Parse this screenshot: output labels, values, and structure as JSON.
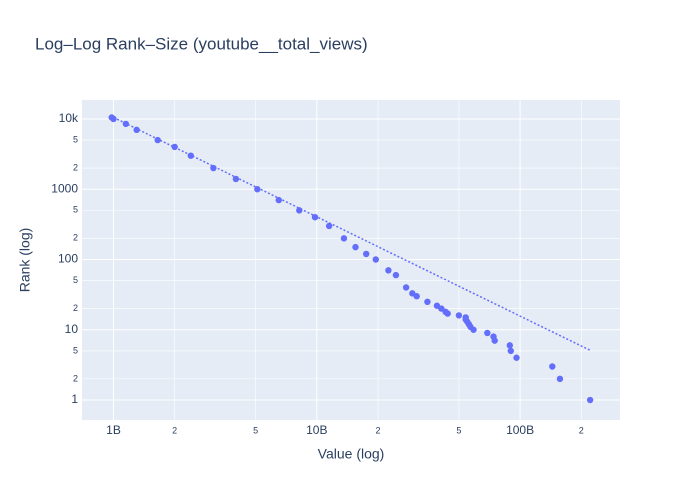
{
  "chart_data": {
    "type": "scatter",
    "title": "Log–Log Rank–Size (youtube__total_views)",
    "xlabel": "Value (log)",
    "ylabel": "Rank (log)",
    "xscale": "log",
    "yscale": "log",
    "grid": true,
    "xlim": [
      700000000,
      310000000000
    ],
    "ylim": [
      0.52,
      18600
    ],
    "xticks": [
      {
        "value": 1000000000,
        "label": "1B"
      },
      {
        "value": 2000000000,
        "label": "2"
      },
      {
        "value": 5000000000,
        "label": "5"
      },
      {
        "value": 10000000000,
        "label": "10B"
      },
      {
        "value": 20000000000,
        "label": "2"
      },
      {
        "value": 50000000000,
        "label": "5"
      },
      {
        "value": 100000000000,
        "label": "100B"
      },
      {
        "value": 200000000000,
        "label": "2"
      }
    ],
    "yticks": [
      1,
      2,
      5,
      10,
      {
        "value": 20,
        "label": "2"
      },
      {
        "value": 50,
        "label": "5"
      },
      100,
      {
        "value": 200,
        "label": "2"
      },
      {
        "value": 500,
        "label": "5"
      },
      1000,
      {
        "value": 2000,
        "label": "2"
      },
      {
        "value": 5000,
        "label": "5"
      },
      {
        "value": 10000,
        "label": "10k"
      }
    ],
    "series": [
      {
        "mode": "markers",
        "color": "#636efa",
        "x": [
          221000000000,
          157000000000,
          144000000000,
          96000000000,
          90000000000,
          89000000000,
          75000000000,
          74000000000,
          69000000000,
          59000000000,
          57000000000,
          56000000000,
          55000000000,
          54000000000,
          54000000000,
          50000000000,
          44000000000,
          43000000000,
          41000000000,
          39000000000,
          35000000000,
          31000000000,
          29500000000,
          27500000000,
          24500000000,
          22500000000,
          19500000000,
          17500000000,
          15500000000,
          13600000000,
          11500000000,
          9800000000,
          8200000000,
          6500000000,
          5100000000,
          4000000000,
          3100000000,
          2400000000,
          2000000000,
          1650000000,
          1300000000,
          1150000000,
          1000000000,
          980000000
        ],
        "values": [
          1,
          2,
          3,
          4,
          5,
          6,
          7,
          8,
          9,
          10,
          11,
          12,
          13,
          14,
          15,
          16,
          17,
          18,
          20,
          22,
          25,
          30,
          33,
          40,
          60,
          70,
          100,
          120,
          150,
          200,
          300,
          400,
          500,
          700,
          1000,
          1400,
          2000,
          3000,
          4000,
          5000,
          7000,
          8500,
          10000,
          10500
        ]
      },
      {
        "mode": "lines",
        "dash": "dot",
        "color": "#636efa",
        "x": [
          1000000000,
          221000000000
        ],
        "values": [
          10500,
          5.1
        ]
      }
    ]
  }
}
